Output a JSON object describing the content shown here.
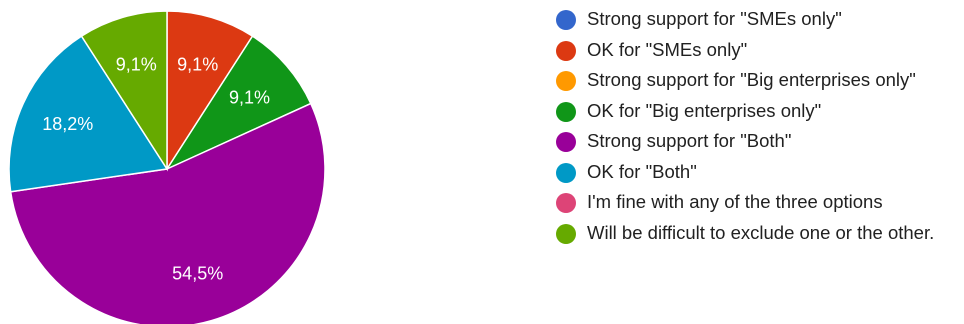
{
  "chart_data": {
    "type": "pie",
    "legend_position": "right",
    "slices": [
      {
        "label": "Strong support for \"SMEs only\"",
        "value": 0,
        "display": "",
        "color": "#3366cc"
      },
      {
        "label": "OK for \"SMEs only\"",
        "value": 9.1,
        "display": "9,1%",
        "color": "#dc3912"
      },
      {
        "label": "Strong support for \"Big enterprises only\"",
        "value": 0,
        "display": "",
        "color": "#ff9900"
      },
      {
        "label": "OK for \"Big enterprises only\"",
        "value": 9.1,
        "display": "9,1%",
        "color": "#109618"
      },
      {
        "label": "Strong support for \"Both\"",
        "value": 54.5,
        "display": "54,5%",
        "color": "#990099"
      },
      {
        "label": "OK for \"Both\"",
        "value": 18.2,
        "display": "18,2%",
        "color": "#0099c6"
      },
      {
        "label": "I'm fine with any of the three options",
        "value": 0,
        "display": "",
        "color": "#dd4477"
      },
      {
        "label": "Will be difficult to exclude one or the other.",
        "value": 9.1,
        "display": "9,1%",
        "color": "#66aa00"
      }
    ]
  }
}
